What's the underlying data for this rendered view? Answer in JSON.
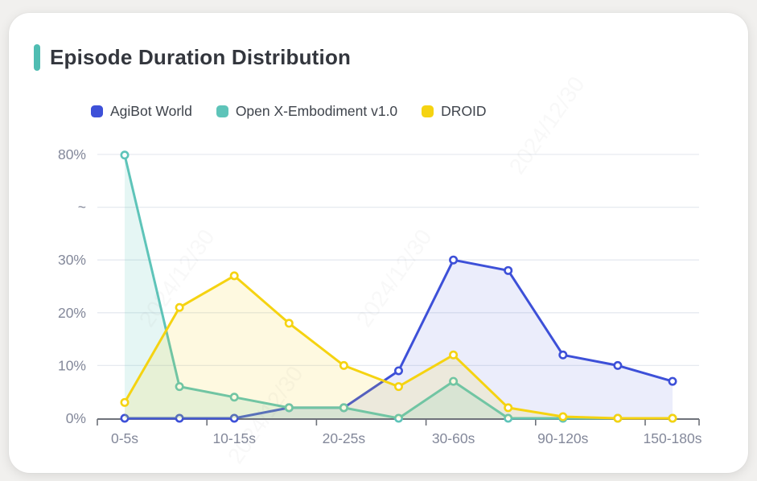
{
  "header": {
    "title": "Episode Duration Distribution",
    "accent_color": "#4FBDB2"
  },
  "watermark": {
    "text": "2024/12/30"
  },
  "chart_data": {
    "type": "line",
    "title": "Episode Duration Distribution",
    "x_labels": [
      "0-5s",
      "",
      "10-15s",
      "",
      "20-25s",
      "",
      "30-60s",
      "",
      "90-120s",
      "",
      "150-180s"
    ],
    "xlabel": "",
    "ylabel": "",
    "y_ticks": [
      "0%",
      "10%",
      "20%",
      "30%",
      "~",
      "80%"
    ],
    "y_axis_break": {
      "between": [
        30,
        80
      ],
      "symbol": "~"
    },
    "grid": true,
    "legend_position": "top-left",
    "marker": "hollow-circle",
    "series": [
      {
        "name": "AgiBot World",
        "color": "#3D50D8",
        "fill": "rgba(61,80,216,0.10)",
        "values": [
          0,
          0,
          0,
          2,
          2,
          9,
          30,
          28,
          12,
          10,
          7
        ]
      },
      {
        "name": "Open X-Embodiment v1.0",
        "color": "#5EC4B9",
        "fill": "rgba(94,196,185,0.16)",
        "values": [
          79.7,
          6,
          4,
          2,
          2,
          0,
          7,
          0,
          0,
          0,
          0
        ]
      },
      {
        "name": "DROID",
        "color": "#F5D311",
        "fill": "rgba(245,211,17,0.13)",
        "values": [
          3,
          21,
          27,
          18,
          10,
          6,
          12,
          2,
          0.3,
          0,
          0
        ]
      }
    ],
    "axis_colors": {
      "axis_line": "#6e727a",
      "grid_line": "#e6eaf0",
      "tick_label": "#83889a"
    }
  }
}
